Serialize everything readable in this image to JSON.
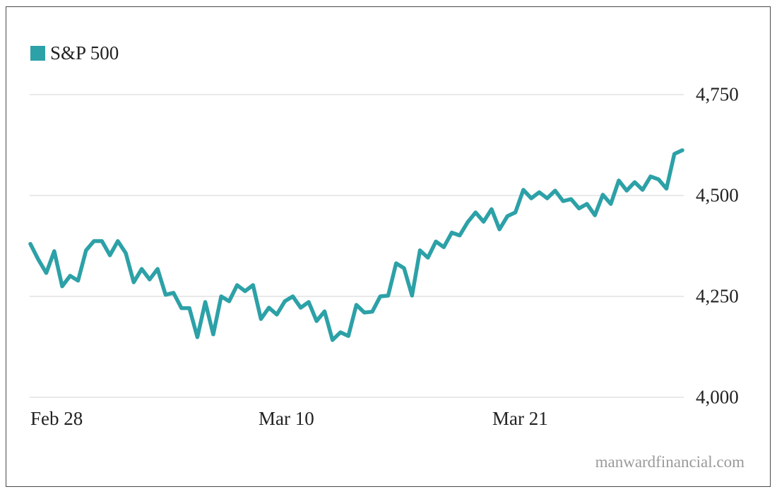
{
  "chart_data": {
    "type": "line",
    "title": "",
    "legend": [
      "S&P 500"
    ],
    "legend_position": "top-left",
    "xlabel": "",
    "ylabel": "",
    "x_tick_labels": [
      "Feb 28",
      "Mar 10",
      "Mar 21"
    ],
    "y_tick_labels": [
      "4,000",
      "4,250",
      "4,500",
      "4,750"
    ],
    "y_ticks": [
      4000,
      4250,
      4500,
      4750
    ],
    "ylim": [
      4000,
      4750
    ],
    "grid": "horizontal",
    "y_axis_position": "right",
    "series": [
      {
        "name": "S&P 500",
        "color": "#2ca1a7",
        "values": [
          4380,
          4341,
          4308,
          4362,
          4275,
          4301,
          4289,
          4364,
          4387,
          4387,
          4352,
          4387,
          4357,
          4285,
          4318,
          4292,
          4318,
          4254,
          4259,
          4221,
          4221,
          4149,
          4236,
          4156,
          4250,
          4238,
          4278,
          4263,
          4278,
          4194,
          4222,
          4205,
          4238,
          4250,
          4222,
          4236,
          4189,
          4213,
          4142,
          4161,
          4152,
          4229,
          4210,
          4212,
          4250,
          4252,
          4332,
          4320,
          4252,
          4364,
          4346,
          4386,
          4372,
          4408,
          4401,
          4434,
          4458,
          4435,
          4466,
          4416,
          4449,
          4458,
          4514,
          4493,
          4508,
          4493,
          4512,
          4486,
          4491,
          4468,
          4479,
          4451,
          4502,
          4479,
          4537,
          4512,
          4533,
          4514,
          4547,
          4540,
          4517,
          4603,
          4612
        ]
      }
    ]
  },
  "legend": {
    "label": "S&P 500",
    "color": "#2ca1a7"
  },
  "axes": {
    "y_labels": [
      "4,750",
      "4,500",
      "4,250",
      "4,000"
    ],
    "x_labels": [
      "Feb 28",
      "Mar 10",
      "Mar 21"
    ]
  },
  "watermark": "manwardfinancial.com"
}
